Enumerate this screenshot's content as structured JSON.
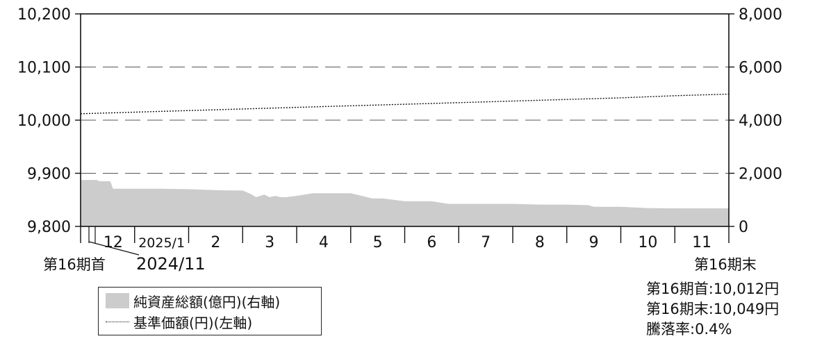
{
  "chart_data": {
    "type": "area+line",
    "period_start_label": "第16期首",
    "period_start_date": "2024/11",
    "period_end_label": "第16期末",
    "months": [
      "12",
      "2025/1",
      "2",
      "3",
      "4",
      "5",
      "6",
      "7",
      "8",
      "9",
      "10",
      "11"
    ],
    "y_left": {
      "ticks": [
        "10,200",
        "10,100",
        "10,000",
        "9,900",
        "9,800"
      ],
      "range": [
        9800,
        10200
      ]
    },
    "y_right": {
      "ticks": [
        "8,000",
        "6,000",
        "4,000",
        "2,000",
        "0"
      ],
      "range": [
        0,
        8000
      ]
    },
    "grid": "dashed horizontal",
    "series": [
      {
        "name": "純資産総額(億円)(右軸)",
        "axis": "right",
        "style": "area",
        "color": "#cccccc",
        "x": [
          0,
          0.3,
          0.35,
          0.55,
          0.6,
          0.8,
          1,
          1.5,
          2,
          2.6,
          3.0,
          3.15,
          3.25,
          3.4,
          3.5,
          3.6,
          3.7,
          3.8,
          4.0,
          4.3,
          4.5,
          5.0,
          5.4,
          5.6,
          6.0,
          6.5,
          6.8,
          7.0,
          7.5,
          8.0,
          8.5,
          9.0,
          9.4,
          9.5,
          10,
          10.5,
          11,
          11.5,
          12
        ],
        "values": [
          1750,
          1750,
          1700,
          1700,
          1420,
          1420,
          1420,
          1420,
          1400,
          1360,
          1350,
          1220,
          1100,
          1200,
          1100,
          1150,
          1100,
          1100,
          1150,
          1250,
          1250,
          1250,
          1050,
          1050,
          950,
          950,
          850,
          850,
          850,
          850,
          820,
          820,
          800,
          740,
          740,
          690,
          680,
          680,
          680
        ]
      },
      {
        "name": "基準価額(円)(左軸)",
        "axis": "left",
        "style": "dotted-line",
        "color": "#111111",
        "x": [
          0,
          1,
          2,
          3,
          4,
          5,
          6,
          7,
          8,
          9,
          10,
          11,
          12
        ],
        "values": [
          10012,
          10015,
          10018,
          10021,
          10024,
          10027,
          10030,
          10033,
          10036,
          10039,
          10042,
          10046,
          10049
        ]
      }
    ],
    "legend": [
      {
        "label": "純資産総額(億円)(右軸)",
        "swatch": "area"
      },
      {
        "label": "基準価額(円)(左軸)",
        "swatch": "dotted"
      }
    ],
    "legend_position": "bottom-left"
  },
  "summary": [
    "第16期首:10,012円",
    "第16期末:10,049円",
    "騰落率:0.4%"
  ]
}
